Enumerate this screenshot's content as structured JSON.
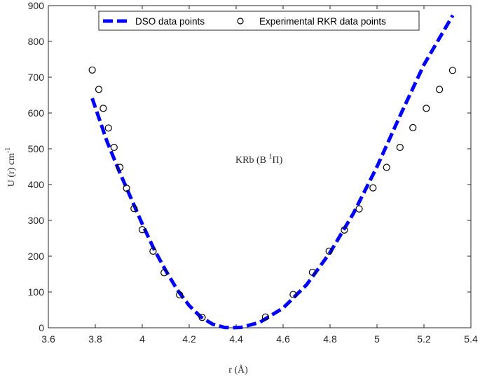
{
  "chart_data": {
    "type": "line",
    "title": "",
    "annotation": {
      "text": "KRb (B ",
      "sup": "1",
      "tail": "Π)"
    },
    "xlabel": "r (Å)",
    "ylabel": {
      "text": "U (r)  cm",
      "sup": "-1"
    },
    "xlim": [
      3.6,
      5.4
    ],
    "ylim": [
      0,
      900
    ],
    "xticks": [
      "3.6",
      "3.8",
      "4",
      "4.2",
      "4.4",
      "4.6",
      "4.8",
      "5",
      "5.2",
      "5.4"
    ],
    "yticks": [
      "0",
      "100",
      "200",
      "300",
      "400",
      "500",
      "600",
      "700",
      "800",
      "900"
    ],
    "grid": false,
    "legend_placement": "top-center",
    "series": [
      {
        "name": "DSO data points",
        "style": "dashed-line",
        "color": "#0000ff",
        "x": [
          3.787,
          3.85,
          3.9,
          3.95,
          4.0,
          4.05,
          4.1,
          4.15,
          4.2,
          4.25,
          4.3,
          4.35,
          4.38,
          4.42,
          4.5,
          4.6,
          4.7,
          4.8,
          4.9,
          5.0,
          5.1,
          5.2,
          5.323
        ],
        "y": [
          641,
          520,
          440,
          365,
          290,
          220,
          160,
          105,
          62,
          30,
          10,
          1,
          0,
          1,
          15,
          55,
          120,
          210,
          320,
          450,
          595,
          735,
          873
        ]
      },
      {
        "name": "Experimental RKR data points",
        "style": "open-circle",
        "color": "#000000",
        "x": [
          3.787,
          3.815,
          3.834,
          3.856,
          3.88,
          3.905,
          3.933,
          3.965,
          4.0,
          4.046,
          4.093,
          4.159,
          4.255,
          4.525,
          4.643,
          4.725,
          4.796,
          4.861,
          4.924,
          4.983,
          5.041,
          5.098,
          5.153,
          5.21,
          5.266,
          5.322
        ],
        "y": [
          720,
          666,
          613,
          558,
          504,
          448,
          390,
          333,
          274,
          214,
          154,
          92,
          29,
          30,
          93,
          155,
          214,
          273,
          332,
          391,
          448,
          504,
          559,
          613,
          666,
          719
        ]
      }
    ]
  }
}
